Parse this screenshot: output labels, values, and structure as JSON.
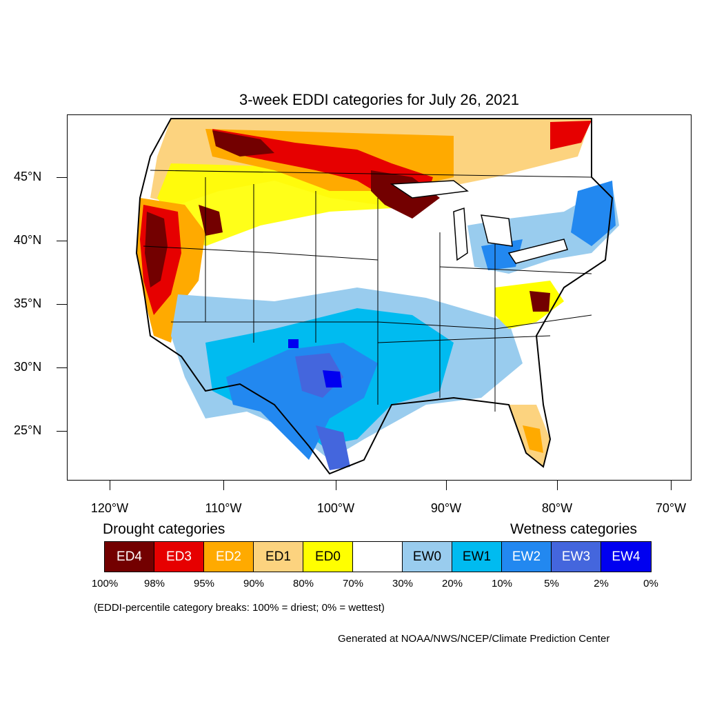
{
  "title": "3-week EDDI categories for July 26, 2021",
  "lat_labels": [
    "45°N",
    "40°N",
    "35°N",
    "30°N",
    "25°N"
  ],
  "lon_labels": [
    "120°W",
    "110°W",
    "100°W",
    "90°W",
    "80°W",
    "70°W"
  ],
  "legend": {
    "drought_heading": "Drought categories",
    "wetness_heading": "Wetness categories",
    "categories": [
      {
        "label": "ED4",
        "color": "#730000",
        "text_color": "#ffffff"
      },
      {
        "label": "ED3",
        "color": "#e60000",
        "text_color": "#ffffff"
      },
      {
        "label": "ED2",
        "color": "#ffaa00",
        "text_color": "#ffffff"
      },
      {
        "label": "ED1",
        "color": "#fcd37f",
        "text_color": "#000000"
      },
      {
        "label": "ED0",
        "color": "#ffff00",
        "text_color": "#000000"
      },
      {
        "label": "",
        "color": "#ffffff",
        "text_color": "#000000"
      },
      {
        "label": "EW0",
        "color": "#99ccee",
        "text_color": "#000000"
      },
      {
        "label": "EW1",
        "color": "#00bbf0",
        "text_color": "#000000"
      },
      {
        "label": "EW2",
        "color": "#2288f0",
        "text_color": "#ffffff"
      },
      {
        "label": "EW3",
        "color": "#4466dd",
        "text_color": "#ffffff"
      },
      {
        "label": "EW4",
        "color": "#0000f0",
        "text_color": "#ffffff"
      }
    ],
    "breaks": [
      "100%",
      "98%",
      "95%",
      "90%",
      "80%",
      "70%",
      "30%",
      "20%",
      "10%",
      "5%",
      "2%",
      "0%"
    ]
  },
  "note": "(EDDI-percentile category breaks: 100% = driest; 0% = wettest)",
  "credit": "Generated at NOAA/NWS/NCEP/Climate Prediction Center"
}
